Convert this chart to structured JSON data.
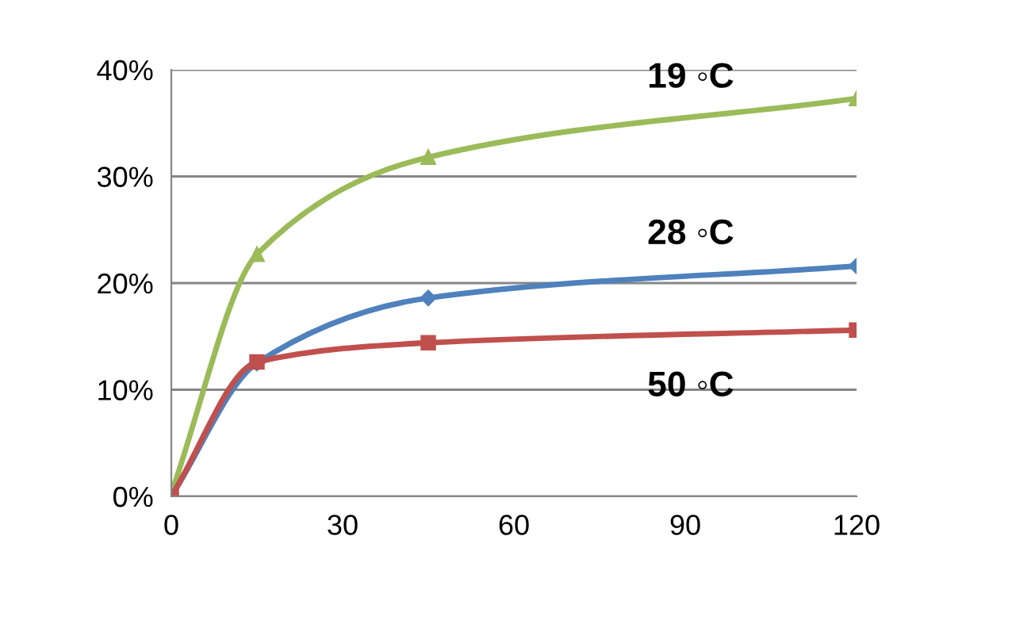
{
  "chart_data": {
    "type": "line",
    "x": [
      0,
      15,
      45,
      120
    ],
    "series": [
      {
        "name": "19 ◦C",
        "color": "#9bbb59",
        "marker": "triangle",
        "values": [
          0.3,
          22.7,
          31.8,
          37.3
        ]
      },
      {
        "name": "28 ◦C",
        "color": "#4f81bd",
        "marker": "diamond",
        "values": [
          0,
          12.5,
          18.6,
          21.6
        ]
      },
      {
        "name": "50 ◦C",
        "color": "#c0504d",
        "marker": "square",
        "values": [
          0,
          12.6,
          14.4,
          15.6
        ]
      }
    ],
    "xlim": [
      0,
      120
    ],
    "xticks": [
      0,
      30,
      60,
      90,
      120
    ],
    "ylim": [
      0,
      40
    ],
    "yticks": [
      {
        "value": 0,
        "label": "0%"
      },
      {
        "value": 10,
        "label": "10%"
      },
      {
        "value": 20,
        "label": "20%"
      },
      {
        "value": 30,
        "label": "30%"
      },
      {
        "value": 40,
        "label": "40%"
      }
    ],
    "grid": "y",
    "legend": false
  }
}
